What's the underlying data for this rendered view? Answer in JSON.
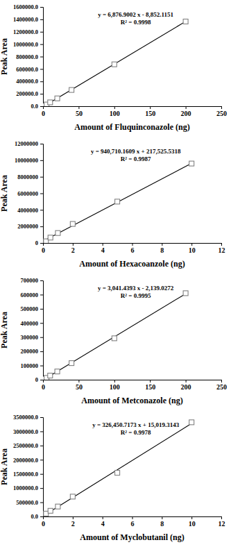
{
  "chart_data": [
    {
      "type": "scatter",
      "x_label": "Amount of Fluquinconazole (ng)",
      "y_label": "Peak Area",
      "x": [
        2,
        5,
        10,
        20,
        40,
        100,
        200
      ],
      "values": [
        6000,
        27000,
        62000,
        126000,
        262000,
        675000,
        1365000
      ],
      "xlim": [
        0,
        250
      ],
      "xticks": [
        0,
        50,
        100,
        150,
        200,
        250
      ],
      "ylim": [
        0,
        1600000
      ],
      "yticks": [
        {
          "value": 0,
          "label": "0.0"
        },
        {
          "value": 200000,
          "label": "200000.0"
        },
        {
          "value": 400000,
          "label": "400000.0"
        },
        {
          "value": 600000,
          "label": "600000.0"
        },
        {
          "value": 800000,
          "label": "800000.0"
        },
        {
          "value": 1000000,
          "label": "1000000.0"
        },
        {
          "value": 1200000,
          "label": "1200000.0"
        },
        {
          "value": 1400000,
          "label": "1400000.0"
        },
        {
          "value": 1600000,
          "label": "1600000.0"
        }
      ],
      "marker": "square",
      "color": "#808080",
      "fit": {
        "slope": 6876.9002,
        "intercept": -8852.1151
      },
      "annotations": [
        "y = 6,876.9002 x - 8,852.1151",
        "R² = 0.9998"
      ]
    },
    {
      "type": "scatter",
      "x_label": "Amount of Hexacoanzole (ng)",
      "y_label": "Peak Area",
      "x": [
        0.2,
        0.5,
        1,
        2,
        5,
        10
      ],
      "values": [
        200000,
        650000,
        1200000,
        2300000,
        5000000,
        9600000
      ],
      "xlim": [
        0,
        12
      ],
      "xticks": [
        0,
        2,
        4,
        6,
        8,
        10,
        12
      ],
      "ylim": [
        0,
        12000000
      ],
      "yticks": [
        0,
        2000000,
        4000000,
        6000000,
        8000000,
        10000000,
        12000000
      ],
      "marker": "square",
      "color": "#808080",
      "fit": {
        "slope": 940710.1609,
        "intercept": 217525.5318
      },
      "annotations": [
        "y = 940,710.1609 x + 217,525.5318",
        "R² = 0.9987"
      ]
    },
    {
      "type": "scatter",
      "x_label": "Amount of Metconazole (ng)",
      "y_label": "Peak Area",
      "x": [
        2,
        5,
        10,
        20,
        40,
        100,
        200
      ],
      "values": [
        5000,
        13000,
        29000,
        58000,
        117000,
        292000,
        610000
      ],
      "xlim": [
        0,
        250
      ],
      "xticks": [
        0,
        50,
        100,
        150,
        200,
        250
      ],
      "ylim": [
        0,
        700000
      ],
      "yticks": [
        0,
        100000,
        200000,
        300000,
        400000,
        500000,
        600000,
        700000
      ],
      "marker": "square",
      "color": "#808080",
      "fit": {
        "slope": 3041.4393,
        "intercept": -2139.0272
      },
      "annotations": [
        "y = 3,041.4393 x - 2,139.0272",
        "R² = 0.9995"
      ]
    },
    {
      "type": "scatter",
      "x_label": "Amount of Myclobutanil (ng)",
      "y_label": "Peak Area",
      "x": [
        0.2,
        0.5,
        1,
        2,
        5,
        10
      ],
      "values": [
        100000,
        200000,
        350000,
        700000,
        1540000,
        3320000
      ],
      "xlim": [
        0,
        12
      ],
      "xticks": [
        0,
        2,
        4,
        6,
        8,
        10,
        12
      ],
      "ylim": [
        0,
        3500000
      ],
      "yticks": [
        {
          "value": 0,
          "label": "0.0"
        },
        {
          "value": 500000,
          "label": "500000.0"
        },
        {
          "value": 1000000,
          "label": "1000000.0"
        },
        {
          "value": 1500000,
          "label": "1500000.0"
        },
        {
          "value": 2000000,
          "label": "2000000.0"
        },
        {
          "value": 2500000,
          "label": "2500000.0"
        },
        {
          "value": 3000000,
          "label": "3000000.0"
        },
        {
          "value": 3500000,
          "label": "3500000.0"
        }
      ],
      "marker": "square",
      "color": "#808080",
      "fit": {
        "slope": 326450.7173,
        "intercept": 15019.3143
      },
      "annotations": [
        "y = 326,450.7173 x + 15,019.3143",
        "R² = 0.9978"
      ]
    }
  ]
}
